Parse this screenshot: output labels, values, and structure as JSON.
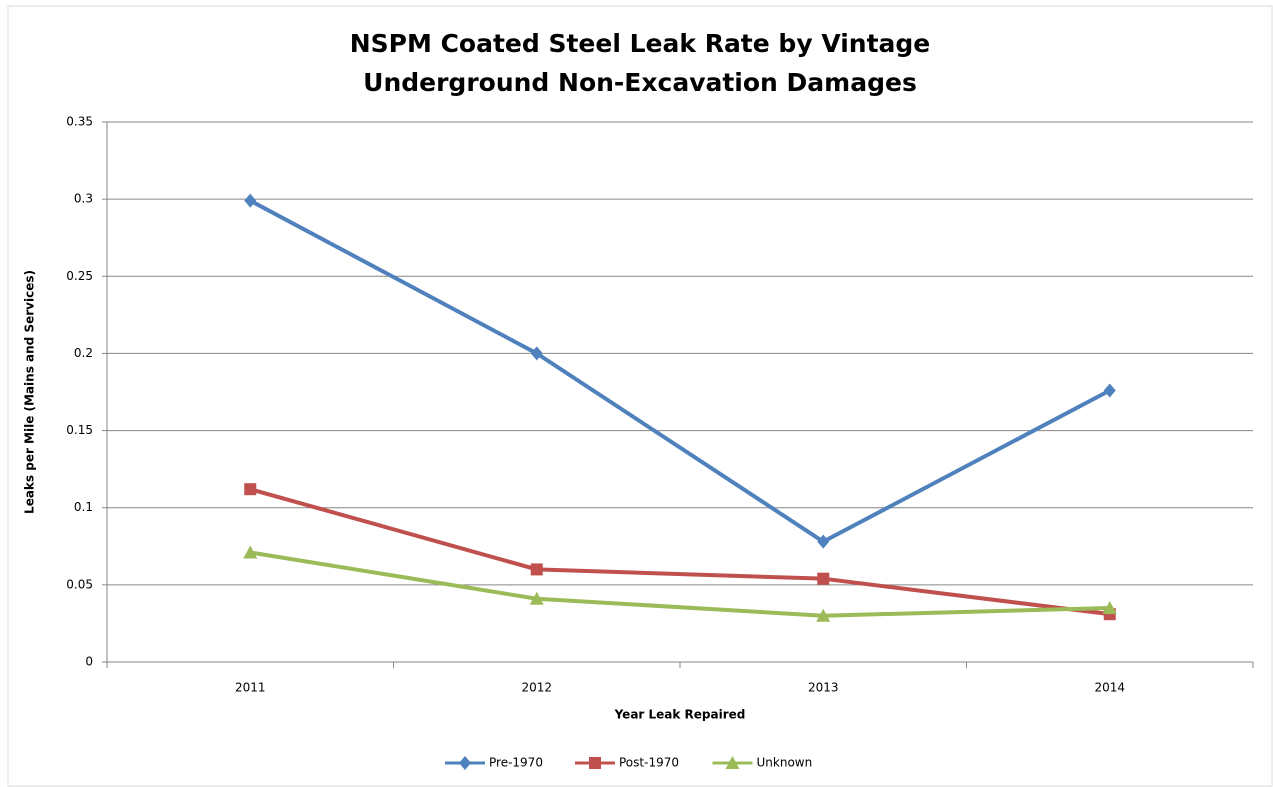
{
  "chart_data": {
    "type": "line",
    "title": "NSPM Coated Steel Leak Rate by Vintage",
    "subtitle": "Underground Non-Excavation Damages",
    "x_label": "Year Leak Repaired",
    "y_label": "Leaks per Mile (Mains and Services)",
    "categories": [
      "2011",
      "2012",
      "2013",
      "2014"
    ],
    "series": [
      {
        "name": "Pre-1970",
        "color": "#4f81bd",
        "marker": "diamond",
        "values": [
          0.299,
          0.2,
          0.078,
          0.176
        ]
      },
      {
        "name": "Post-1970",
        "color": "#c0504d",
        "marker": "square",
        "values": [
          0.112,
          0.06,
          0.054,
          0.031
        ]
      },
      {
        "name": "Unknown",
        "color": "#9bbb59",
        "marker": "triangle",
        "values": [
          0.071,
          0.041,
          0.03,
          0.035
        ]
      }
    ],
    "ylim": [
      0,
      0.35
    ],
    "yticks": [
      0,
      0.05,
      0.1,
      0.15,
      0.2,
      0.25,
      0.3,
      0.35
    ],
    "grid": true,
    "legend": "bottom"
  }
}
